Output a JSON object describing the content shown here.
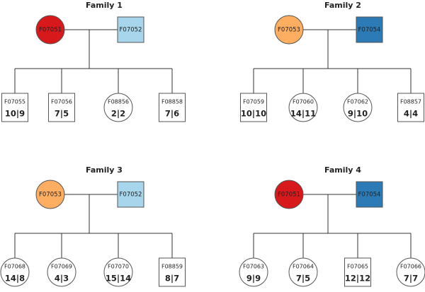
{
  "families": [
    {
      "title": "Family 1",
      "mother": "F07051",
      "father": "F07052",
      "children": [
        {
          "id": "F07055",
          "genotype": "10|9"
        },
        {
          "id": "F07056",
          "genotype": "7|5"
        },
        {
          "id": "F08856",
          "genotype": "2|2"
        },
        {
          "id": "F08858",
          "genotype": "7|6"
        }
      ]
    },
    {
      "title": "Family 2",
      "mother": "F07053",
      "father": "F07054",
      "children": [
        {
          "id": "F07059",
          "genotype": "10|10"
        },
        {
          "id": "F07060",
          "genotype": "14|11"
        },
        {
          "id": "F07062",
          "genotype": "9|10"
        },
        {
          "id": "F08857",
          "genotype": "4|4"
        }
      ]
    },
    {
      "title": "Family 3",
      "mother": "F07053",
      "father": "F07052",
      "children": [
        {
          "id": "F07068",
          "genotype": "14|8"
        },
        {
          "id": "F07069",
          "genotype": "4|3"
        },
        {
          "id": "F07070",
          "genotype": "15|14"
        },
        {
          "id": "F08859",
          "genotype": "8|7"
        }
      ]
    },
    {
      "title": "Family 4",
      "mother": "F07051",
      "father": "F07054",
      "children": [
        {
          "id": "F07063",
          "genotype": "9|9"
        },
        {
          "id": "F07064",
          "genotype": "7|5"
        },
        {
          "id": "F07065",
          "genotype": "12|12"
        },
        {
          "id": "F07066",
          "genotype": "7|7"
        }
      ]
    }
  ]
}
